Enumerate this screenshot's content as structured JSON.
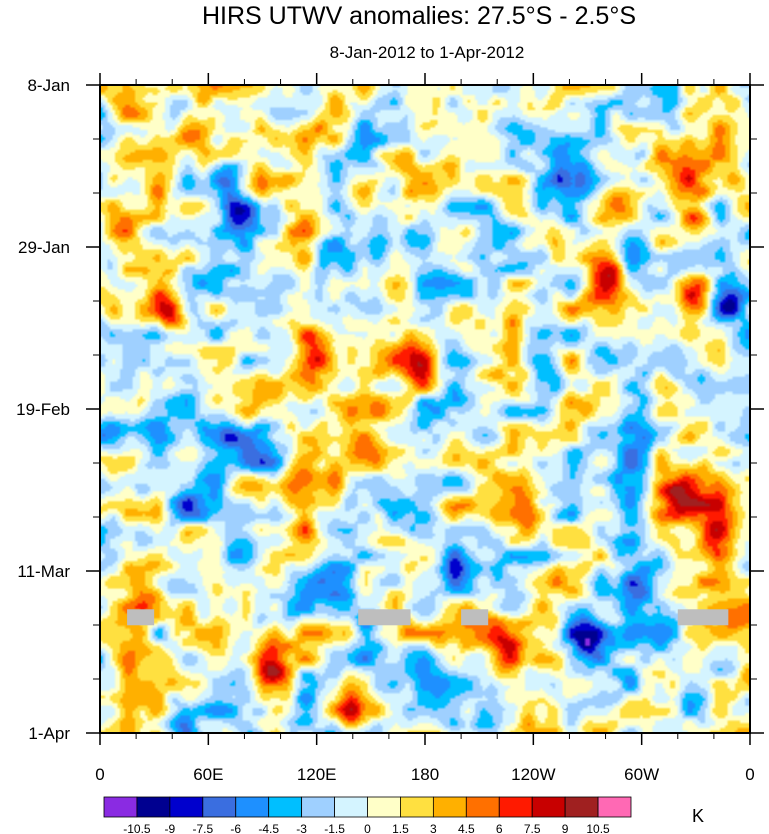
{
  "chart_data": {
    "type": "heatmap",
    "title": "HIRS UTWV anomalies: 27.5°S - 2.5°S",
    "subtitle": "8-Jan-2012 to 1-Apr-2012",
    "xlabel": "",
    "ylabel": "",
    "x_ticks": [
      "0",
      "60E",
      "120E",
      "180",
      "120W",
      "60W",
      "0"
    ],
    "y_ticks": [
      "8-Jan",
      "29-Jan",
      "19-Feb",
      "11-Mar",
      "1-Apr"
    ],
    "x_range_deg": [
      0,
      360
    ],
    "y_range_days": [
      0,
      84
    ],
    "colorbar": {
      "labels": [
        "-10.5",
        "-9",
        "-7.5",
        "-6",
        "-4.5",
        "-3",
        "-1.5",
        "0",
        "1.5",
        "3",
        "4.5",
        "6",
        "7.5",
        "9",
        "10.5"
      ],
      "colors": [
        "#8a2be2",
        "#000090",
        "#0000cd",
        "#3a6ee0",
        "#1e90ff",
        "#00bfff",
        "#9fd0ff",
        "#d4f4ff",
        "#ffffc8",
        "#ffe040",
        "#ffb000",
        "#ff7000",
        "#ff1a00",
        "#c80000",
        "#a02020",
        "#ff69b4"
      ],
      "unit": "K"
    },
    "missing_color": "#bebebe",
    "missing_segments": [
      {
        "day": 69,
        "lon_start": 15,
        "lon_end": 30
      },
      {
        "day": 69,
        "lon_start": 143,
        "lon_end": 172
      },
      {
        "day": 69,
        "lon_start": 200,
        "lon_end": 215
      },
      {
        "day": 69,
        "lon_start": 320,
        "lon_end": 348
      }
    ],
    "features": [
      {
        "lon": 80,
        "day": 18,
        "value": -11
      },
      {
        "lon": 70,
        "day": 12,
        "value": -8
      },
      {
        "lon": 130,
        "day": 22,
        "value": -7.5
      },
      {
        "lon": 205,
        "day": 40,
        "value": -4.5
      },
      {
        "lon": 260,
        "day": 10,
        "value": -7
      },
      {
        "lon": 325,
        "day": 10,
        "value": 8
      },
      {
        "lon": 330,
        "day": 18,
        "value": 7
      },
      {
        "lon": 347,
        "day": 28,
        "value": -9
      },
      {
        "lon": 280,
        "day": 25,
        "value": 11
      },
      {
        "lon": 283,
        "day": 15,
        "value": 8
      },
      {
        "lon": 40,
        "day": 30,
        "value": 8
      },
      {
        "lon": 123,
        "day": 35,
        "value": 9
      },
      {
        "lon": 175,
        "day": 36,
        "value": 8
      },
      {
        "lon": 330,
        "day": 27,
        "value": 7
      },
      {
        "lon": 325,
        "day": 52,
        "value": 11.5
      },
      {
        "lon": 340,
        "day": 58,
        "value": 7
      },
      {
        "lon": 95,
        "day": 75,
        "value": 11.5
      },
      {
        "lon": 140,
        "day": 81,
        "value": 8
      },
      {
        "lon": 225,
        "day": 74,
        "value": 8
      },
      {
        "lon": 270,
        "day": 72,
        "value": -10
      },
      {
        "lon": 130,
        "day": 64,
        "value": -9
      },
      {
        "lon": 150,
        "day": 70,
        "value": -7
      },
      {
        "lon": 70,
        "day": 45,
        "value": -6
      },
      {
        "lon": 93,
        "day": 48,
        "value": -8
      },
      {
        "lon": 50,
        "day": 54,
        "value": -8
      },
      {
        "lon": 70,
        "day": 61,
        "value": -6
      },
      {
        "lon": 25,
        "day": 65,
        "value": 6
      },
      {
        "lon": 110,
        "day": 52,
        "value": 5
      },
      {
        "lon": 240,
        "day": 57,
        "value": 5
      },
      {
        "lon": 10,
        "day": 20,
        "value": 5
      },
      {
        "lon": 180,
        "day": 12,
        "value": 5
      },
      {
        "lon": 200,
        "day": 63,
        "value": -5
      },
      {
        "lon": 300,
        "day": 40,
        "value": -3
      },
      {
        "lon": 5,
        "day": 45,
        "value": -6
      },
      {
        "lon": 345,
        "day": 70,
        "value": 6
      },
      {
        "lon": 18,
        "day": 78,
        "value": 4
      },
      {
        "lon": 45,
        "day": 82,
        "value": -6
      },
      {
        "lon": 155,
        "day": 20,
        "value": -5
      },
      {
        "lon": 230,
        "day": 5,
        "value": -4
      },
      {
        "lon": 300,
        "day": 65,
        "value": -5
      },
      {
        "lon": 250,
        "day": 30,
        "value": -3
      },
      {
        "lon": 60,
        "day": 3,
        "value": 5
      },
      {
        "lon": 200,
        "day": 30,
        "value": 4
      },
      {
        "lon": 20,
        "day": 70,
        "value": 4
      }
    ]
  }
}
